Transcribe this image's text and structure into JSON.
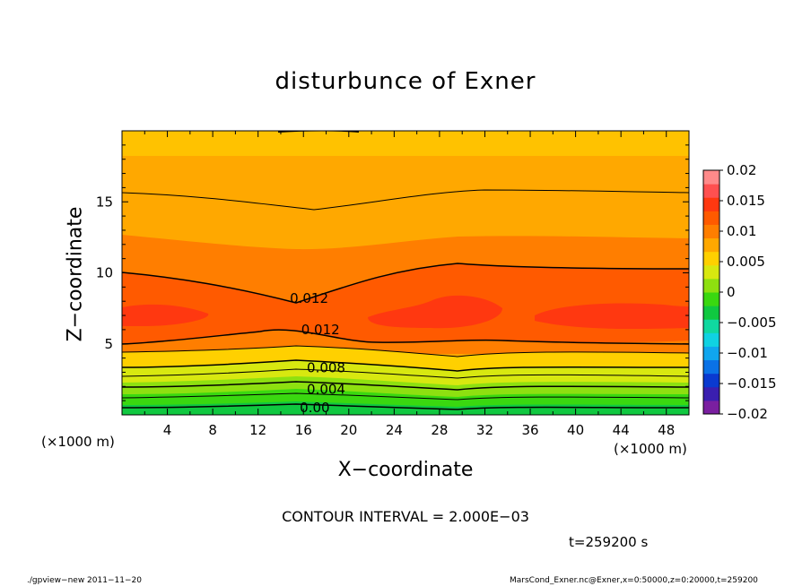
{
  "chart_data": {
    "type": "contour",
    "title": "disturbunce of Exner",
    "xlabel": "X−coordinate",
    "ylabel": "Z−coordinate",
    "x_unit_left": "(×1000 m)",
    "x_unit_right": "(×1000 m)",
    "xlim": [
      0,
      50
    ],
    "ylim": [
      0,
      20
    ],
    "x_ticks": [
      "4",
      "8",
      "12",
      "16",
      "20",
      "24",
      "28",
      "32",
      "36",
      "40",
      "44",
      "48"
    ],
    "x_tick_values": [
      4,
      8,
      12,
      16,
      20,
      24,
      28,
      32,
      36,
      40,
      44,
      48
    ],
    "y_ticks": [
      "5",
      "10",
      "15"
    ],
    "y_tick_values": [
      5,
      10,
      15
    ],
    "colorbar": {
      "range": [
        -0.02,
        0.02
      ],
      "tick_values": [
        0.02,
        0.015,
        0.01,
        0.005,
        0,
        -0.005,
        -0.01,
        -0.015,
        -0.02
      ],
      "tick_labels": [
        "0.02",
        "0.015",
        "0.01",
        "0.005",
        "0",
        "−0.005",
        "−0.01",
        "−0.015",
        "−0.02"
      ],
      "colors": [
        "#7a1fa0",
        "#3a1fb0",
        "#0a3ad0",
        "#0a72e6",
        "#10a6ee",
        "#10d2e2",
        "#10d8a0",
        "#10c840",
        "#3ad810",
        "#8ee010",
        "#d8e810",
        "#ffd000",
        "#ffa800",
        "#ff7e00",
        "#ff5a00",
        "#ff3810",
        "#ff5050",
        "#ff8a8a"
      ]
    },
    "contour_labels": [
      {
        "text": "0.012",
        "x": 16.5,
        "z": 8.2
      },
      {
        "text": "0.012",
        "x": 17.5,
        "z": 6.0
      },
      {
        "text": "0.008",
        "x": 18.0,
        "z": 3.3
      },
      {
        "text": "0.004",
        "x": 18.0,
        "z": 1.8
      },
      {
        "text": "0.00",
        "x": 17.0,
        "z": 0.5
      }
    ],
    "contour_interval_text": "CONTOUR INTERVAL = 2.000E−03",
    "time_text": "t=259200 s"
  },
  "footer": {
    "left": "./gpview−new   2011−11−20",
    "right": "MarsCond_Exner.nc@Exner,x=0:50000,z=0:20000,t=259200"
  }
}
